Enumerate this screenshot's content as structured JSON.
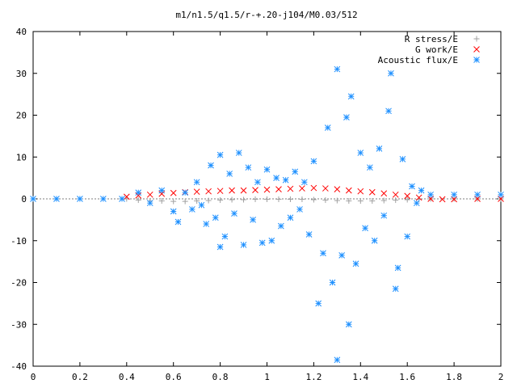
{
  "chart_data": {
    "type": "scatter",
    "title": "m1/n1.5/q1.5/r-+.20-j104/M0.03/512",
    "xlabel": "",
    "ylabel": "",
    "xlim": [
      0,
      2
    ],
    "ylim": [
      -40,
      40
    ],
    "x_ticks": [
      "0",
      "0.2",
      "0.4",
      "0.6",
      "0.8",
      "1",
      "1.2",
      "1.4",
      "1.6",
      "1.8",
      "2"
    ],
    "y_ticks": [
      "40",
      "30",
      "20",
      "10",
      "0",
      "-10",
      "-20",
      "-30",
      "-40"
    ],
    "grid": false,
    "legend_position": "top-right",
    "series": [
      {
        "name": "R stress/E",
        "marker": "+",
        "color": "#a0a0a0",
        "points": [
          [
            0.4,
            0.0
          ],
          [
            0.45,
            -0.3
          ],
          [
            0.5,
            -0.5
          ],
          [
            0.55,
            -0.5
          ],
          [
            0.6,
            -0.6
          ],
          [
            0.65,
            -0.6
          ],
          [
            0.7,
            -0.5
          ],
          [
            0.75,
            -0.4
          ],
          [
            0.8,
            -0.3
          ],
          [
            0.85,
            -0.2
          ],
          [
            0.9,
            -0.2
          ],
          [
            0.95,
            -0.1
          ],
          [
            1.0,
            -0.1
          ],
          [
            1.05,
            -0.1
          ],
          [
            1.1,
            -0.1
          ],
          [
            1.15,
            -0.1
          ],
          [
            1.2,
            -0.2
          ],
          [
            1.25,
            -0.3
          ],
          [
            1.3,
            -0.4
          ],
          [
            1.35,
            -0.5
          ],
          [
            1.4,
            -0.5
          ],
          [
            1.45,
            -0.5
          ],
          [
            1.5,
            -0.4
          ],
          [
            1.55,
            -0.3
          ],
          [
            1.6,
            -0.2
          ],
          [
            1.65,
            -0.1
          ],
          [
            1.7,
            0.0
          ],
          [
            1.8,
            0.0
          ],
          [
            1.9,
            0.0
          ],
          [
            2.0,
            0.0
          ]
        ]
      },
      {
        "name": "G work/E",
        "marker": "x",
        "color": "#ff0000",
        "points": [
          [
            0.4,
            0.5
          ],
          [
            0.45,
            0.8
          ],
          [
            0.5,
            1.0
          ],
          [
            0.55,
            1.2
          ],
          [
            0.6,
            1.4
          ],
          [
            0.65,
            1.6
          ],
          [
            0.7,
            1.7
          ],
          [
            0.75,
            1.8
          ],
          [
            0.8,
            1.9
          ],
          [
            0.85,
            2.0
          ],
          [
            0.9,
            2.0
          ],
          [
            0.95,
            2.1
          ],
          [
            1.0,
            2.2
          ],
          [
            1.05,
            2.3
          ],
          [
            1.1,
            2.4
          ],
          [
            1.15,
            2.5
          ],
          [
            1.2,
            2.6
          ],
          [
            1.25,
            2.5
          ],
          [
            1.3,
            2.3
          ],
          [
            1.35,
            2.0
          ],
          [
            1.4,
            1.8
          ],
          [
            1.45,
            1.6
          ],
          [
            1.5,
            1.3
          ],
          [
            1.55,
            1.0
          ],
          [
            1.6,
            0.7
          ],
          [
            1.65,
            0.3
          ],
          [
            1.7,
            0.0
          ],
          [
            1.75,
            -0.1
          ],
          [
            1.8,
            -0.1
          ],
          [
            1.9,
            0.0
          ],
          [
            2.0,
            0.0
          ]
        ]
      },
      {
        "name": "Acoustic flux/E",
        "marker": "*",
        "color": "#1e90ff",
        "points": [
          [
            0.0,
            0.0
          ],
          [
            0.1,
            0.0
          ],
          [
            0.2,
            0.0
          ],
          [
            0.3,
            0.0
          ],
          [
            0.38,
            0.0
          ],
          [
            0.45,
            1.5
          ],
          [
            0.5,
            -1.0
          ],
          [
            0.55,
            2.0
          ],
          [
            0.6,
            -3.0
          ],
          [
            0.62,
            -5.5
          ],
          [
            0.65,
            1.5
          ],
          [
            0.68,
            -2.5
          ],
          [
            0.7,
            4.0
          ],
          [
            0.72,
            -1.5
          ],
          [
            0.74,
            -6.0
          ],
          [
            0.76,
            8.0
          ],
          [
            0.78,
            -4.5
          ],
          [
            0.8,
            10.5
          ],
          [
            0.8,
            -11.5
          ],
          [
            0.82,
            -9.0
          ],
          [
            0.84,
            6.0
          ],
          [
            0.86,
            -3.5
          ],
          [
            0.88,
            11.0
          ],
          [
            0.9,
            -11.0
          ],
          [
            0.92,
            7.5
          ],
          [
            0.94,
            -5.0
          ],
          [
            0.96,
            4.0
          ],
          [
            0.98,
            -10.5
          ],
          [
            1.0,
            7.0
          ],
          [
            1.02,
            -10.0
          ],
          [
            1.04,
            5.0
          ],
          [
            1.06,
            -6.5
          ],
          [
            1.08,
            4.5
          ],
          [
            1.1,
            -4.5
          ],
          [
            1.12,
            6.5
          ],
          [
            1.14,
            -2.5
          ],
          [
            1.16,
            4.0
          ],
          [
            1.18,
            -8.5
          ],
          [
            1.2,
            9.0
          ],
          [
            1.22,
            -25.0
          ],
          [
            1.24,
            -13.0
          ],
          [
            1.26,
            17.0
          ],
          [
            1.28,
            -20.0
          ],
          [
            1.3,
            31.0
          ],
          [
            1.3,
            -38.5
          ],
          [
            1.32,
            -13.5
          ],
          [
            1.34,
            19.5
          ],
          [
            1.35,
            -30.0
          ],
          [
            1.36,
            24.5
          ],
          [
            1.38,
            -15.5
          ],
          [
            1.4,
            11.0
          ],
          [
            1.42,
            -7.0
          ],
          [
            1.44,
            7.5
          ],
          [
            1.46,
            -10.0
          ],
          [
            1.48,
            12.0
          ],
          [
            1.5,
            -4.0
          ],
          [
            1.52,
            21.0
          ],
          [
            1.53,
            30.0
          ],
          [
            1.55,
            -21.5
          ],
          [
            1.56,
            -16.5
          ],
          [
            1.58,
            9.5
          ],
          [
            1.6,
            -9.0
          ],
          [
            1.62,
            3.0
          ],
          [
            1.64,
            -1.0
          ],
          [
            1.66,
            2.0
          ],
          [
            1.7,
            1.0
          ],
          [
            1.8,
            1.0
          ],
          [
            1.9,
            1.0
          ],
          [
            2.0,
            1.0
          ]
        ]
      }
    ]
  }
}
